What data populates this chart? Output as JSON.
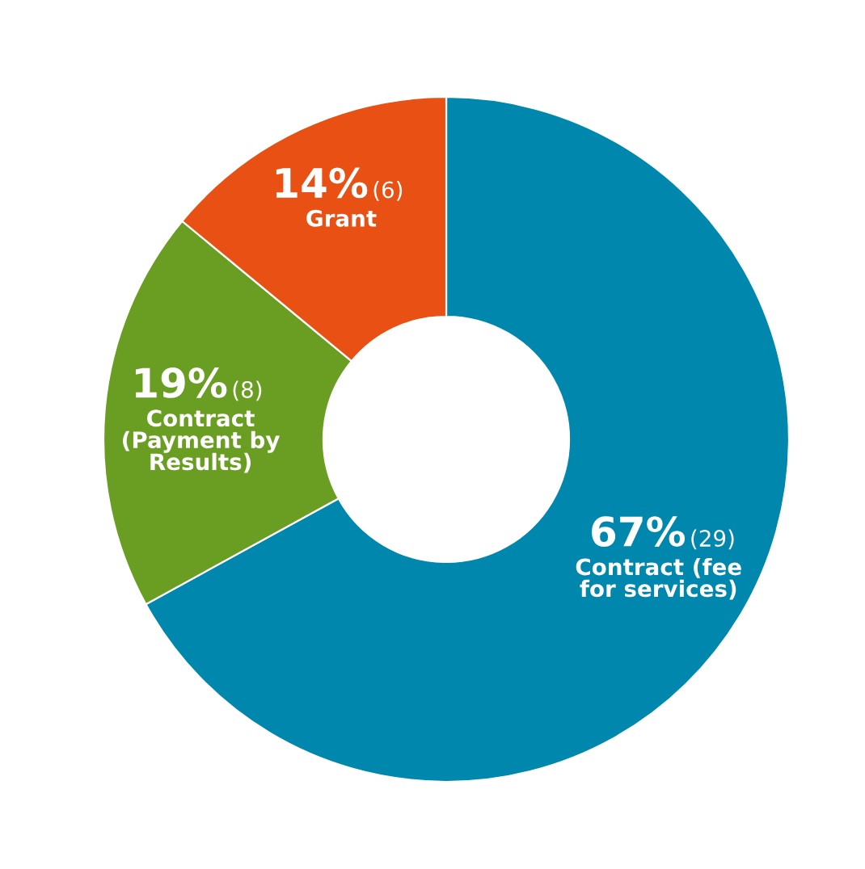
{
  "chart_data": {
    "type": "donut",
    "categories": [
      "Contract (fee\nfor services)",
      "Contract\n(Payment by\nResults)",
      "Grant"
    ],
    "values": [
      67,
      19,
      14
    ],
    "colors": [
      "#0087ad",
      "#6a9e22",
      "#e85113"
    ],
    "value_labels": [
      "67% (29)",
      "19% (8)",
      "14% (6)"
    ],
    "legend": false
  }
}
